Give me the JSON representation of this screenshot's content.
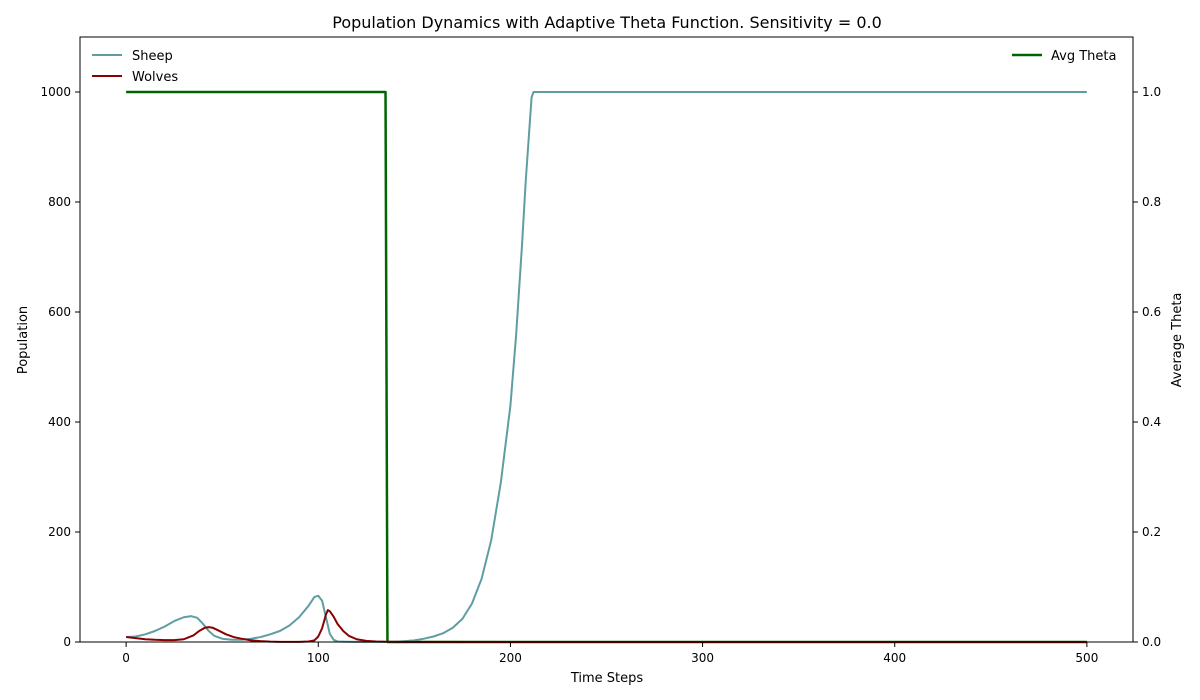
{
  "chart_data": {
    "type": "line",
    "title": "Population Dynamics with Adaptive Theta Function. Sensitivity = 0.0",
    "xlabel": "Time Steps",
    "ylabel": "Population",
    "y2label": "Average Theta",
    "xlim": [
      -24,
      524
    ],
    "ylim": [
      0,
      1100
    ],
    "y2lim": [
      0,
      1.1
    ],
    "xticks": [
      0,
      100,
      200,
      300,
      400,
      500
    ],
    "yticks": [
      0,
      200,
      400,
      600,
      800,
      1000
    ],
    "y2ticks": [
      0.0,
      0.2,
      0.4,
      0.6,
      0.8,
      1.0
    ],
    "y2ticklabels": [
      "0.0",
      "0.2",
      "0.4",
      "0.6",
      "0.8",
      "1.0"
    ],
    "grid": false,
    "legend_left": "top-left",
    "legend_right": "top-right",
    "colors": {
      "sheep": "#5f9ea0",
      "wolves": "#8b0000",
      "theta": "#006400"
    },
    "series": [
      {
        "name": "Sheep",
        "axis": "left",
        "x": [
          0,
          5,
          10,
          15,
          20,
          25,
          30,
          34,
          37,
          40,
          43,
          46,
          50,
          55,
          60,
          65,
          70,
          75,
          80,
          85,
          90,
          95,
          98,
          100,
          102,
          104,
          106,
          108,
          110,
          115,
          120,
          125,
          130,
          135,
          140,
          145,
          150,
          155,
          160,
          165,
          170,
          175,
          180,
          185,
          190,
          195,
          200,
          203,
          206,
          208,
          210,
          211,
          212,
          215,
          220,
          300,
          400,
          500
        ],
        "y": [
          9,
          10,
          14,
          20,
          28,
          38,
          45,
          47,
          44,
          33,
          20,
          11,
          6,
          4,
          4,
          6,
          9,
          14,
          20,
          30,
          45,
          66,
          82,
          84,
          75,
          45,
          15,
          4,
          1,
          0.5,
          0.3,
          0.2,
          0.2,
          0.2,
          0.5,
          1.5,
          3,
          6,
          10,
          16,
          26,
          42,
          70,
          115,
          185,
          290,
          430,
          560,
          720,
          840,
          940,
          990,
          1000,
          1000,
          1000,
          1000,
          1000,
          1000
        ]
      },
      {
        "name": "Wolves",
        "axis": "left",
        "x": [
          0,
          5,
          10,
          15,
          20,
          25,
          30,
          35,
          38,
          41,
          43,
          45,
          48,
          52,
          56,
          60,
          65,
          70,
          75,
          80,
          85,
          90,
          95,
          98,
          100,
          102,
          104,
          105,
          106,
          108,
          110,
          113,
          116,
          120,
          125,
          130,
          135,
          140,
          200,
          300,
          400,
          500
        ],
        "y": [
          9,
          7,
          5,
          4,
          3.5,
          3.5,
          5,
          12,
          20,
          26,
          27,
          26,
          21,
          14,
          9,
          6,
          3,
          1.5,
          0.7,
          0.3,
          0.2,
          0.3,
          1,
          3,
          10,
          25,
          50,
          58,
          56,
          46,
          33,
          20,
          11,
          5,
          2,
          1,
          0.5,
          0.2,
          0.1,
          0.1,
          0.1,
          0.1
        ]
      },
      {
        "name": "Avg Theta",
        "axis": "right",
        "x": [
          0,
          135,
          136,
          137,
          500
        ],
        "y": [
          1.0,
          1.0,
          0.0,
          0.0,
          0.0
        ]
      }
    ]
  }
}
